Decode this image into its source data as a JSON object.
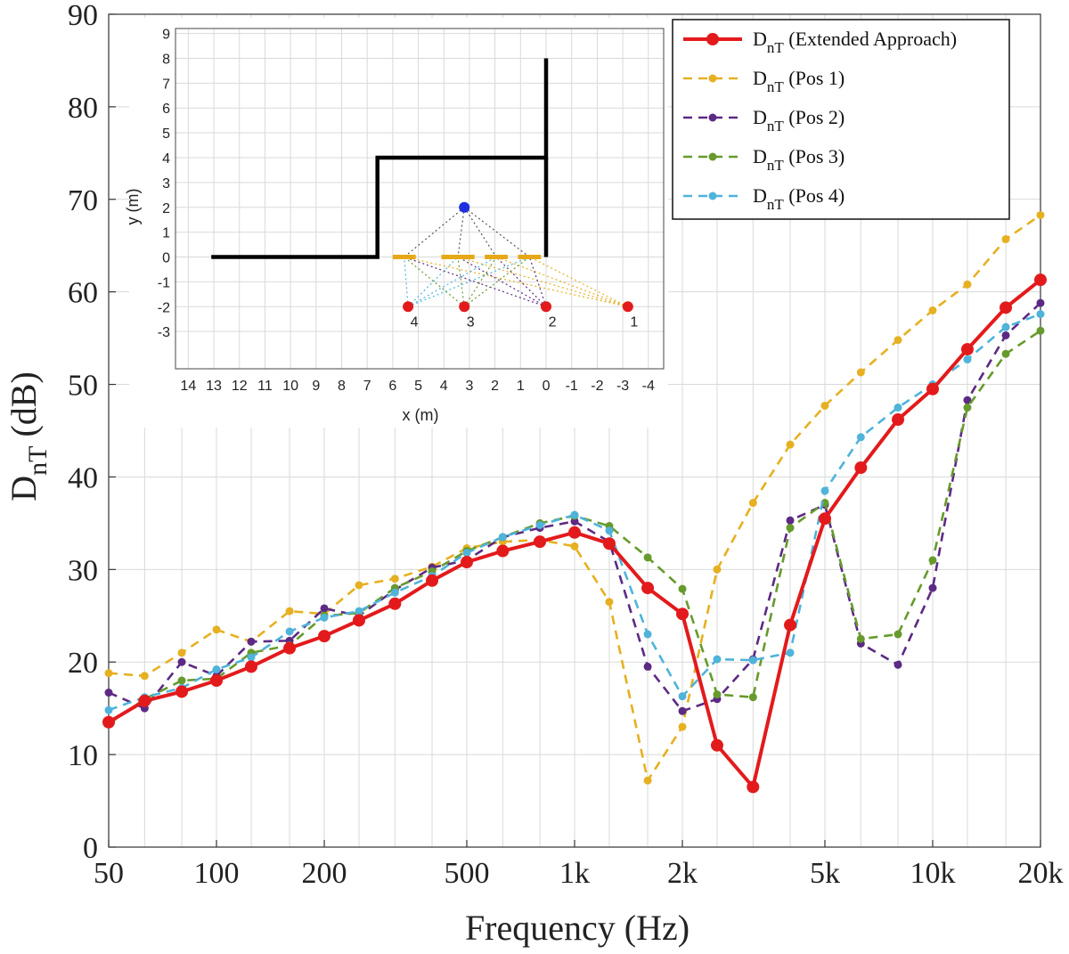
{
  "chart_data": {
    "type": "line",
    "xscale": "log",
    "x": [
      50,
      63,
      80,
      100,
      125,
      160,
      200,
      250,
      315,
      400,
      500,
      630,
      800,
      1000,
      1250,
      1600,
      2000,
      2500,
      3150,
      4000,
      5000,
      6300,
      8000,
      10000,
      12500,
      16000,
      20000
    ],
    "xticks": [
      {
        "value": 50,
        "label": "50"
      },
      {
        "value": 100,
        "label": "100"
      },
      {
        "value": 200,
        "label": "200"
      },
      {
        "value": 500,
        "label": "500"
      },
      {
        "value": 1000,
        "label": "1k"
      },
      {
        "value": 2000,
        "label": "2k"
      },
      {
        "value": 5000,
        "label": "5k"
      },
      {
        "value": 10000,
        "label": "10k"
      },
      {
        "value": 20000,
        "label": "20k"
      }
    ],
    "xlabel": "Frequency (Hz)",
    "ylabel": {
      "main": "D",
      "sub": "nT",
      "unit": " (dB)"
    },
    "xlim": [
      50,
      20000
    ],
    "ylim": [
      0,
      90
    ],
    "yticks": [
      0,
      10,
      20,
      30,
      40,
      50,
      60,
      70,
      80,
      90
    ],
    "grid": true,
    "legend_position": "top-right",
    "series": [
      {
        "name": "D",
        "sub": "nT",
        "suffix": " (Extended Approach)",
        "color": "#e31a1c",
        "style": "solid",
        "values": [
          13.5,
          15.8,
          16.8,
          18,
          19.5,
          21.5,
          22.8,
          24.5,
          26.3,
          28.8,
          30.8,
          32,
          33,
          34,
          32.8,
          28,
          25.2,
          11,
          6.5,
          24,
          35.5,
          41,
          46.2,
          49.5,
          53.8,
          58.3,
          61.3
        ]
      },
      {
        "name": "D",
        "sub": "nT",
        "suffix": " (Pos 1)",
        "color": "#e6b021",
        "style": "dashed",
        "values": [
          18.8,
          18.5,
          21,
          23.5,
          22.2,
          25.5,
          25.2,
          28.3,
          29,
          30.3,
          32.3,
          33,
          33.2,
          32.5,
          26.5,
          7.2,
          13,
          30,
          37.2,
          43.5,
          47.7,
          51.3,
          54.8,
          58,
          60.8,
          65.7,
          68.3
        ]
      },
      {
        "name": "D",
        "sub": "nT",
        "suffix": " (Pos 2)",
        "color": "#5c2a84",
        "style": "dashed",
        "values": [
          16.7,
          15,
          20,
          18.5,
          22.2,
          22.3,
          25.8,
          25,
          27.8,
          30.2,
          31,
          33.5,
          34.5,
          35.2,
          33,
          19.5,
          14.7,
          16,
          20.3,
          35.3,
          37,
          22,
          19.7,
          28,
          48.3,
          55.3,
          58.8
        ]
      },
      {
        "name": "D",
        "sub": "nT",
        "suffix": " (Pos 3)",
        "color": "#679a2c",
        "style": "dashed",
        "values": [
          13.3,
          16,
          18,
          18.2,
          21,
          21.8,
          25,
          25.3,
          28,
          29.8,
          32,
          33.5,
          35,
          35.8,
          34.7,
          31.3,
          27.9,
          16.5,
          16.2,
          34.5,
          37.2,
          22.5,
          23,
          31,
          47.5,
          53.3,
          55.8
        ]
      },
      {
        "name": "D",
        "sub": "nT",
        "suffix": " (Pos 4)",
        "color": "#4fb3da",
        "style": "dashed",
        "values": [
          14.8,
          16.2,
          17.2,
          19.2,
          20.5,
          23.3,
          24.8,
          25.5,
          27.5,
          29.3,
          31.8,
          33.5,
          34.8,
          35.9,
          34.2,
          23,
          16.3,
          20.3,
          20.2,
          21,
          38.5,
          44.3,
          47.5,
          50,
          52.7,
          56.2,
          57.6
        ]
      }
    ],
    "inset": {
      "xlabel": "x (m)",
      "ylabel": "y (m)",
      "xticks": [
        14,
        13,
        12,
        11,
        10,
        9,
        8,
        7,
        6,
        5,
        4,
        3,
        2,
        1,
        0,
        -1,
        -2,
        -3,
        -4
      ],
      "yticks": [
        -3,
        -2,
        -1,
        0,
        1,
        2,
        3,
        4,
        5,
        6,
        7,
        8,
        9
      ],
      "xlim": [
        14.5,
        -4.6
      ],
      "ylim": [
        -4.5,
        9.2
      ],
      "walls": [
        [
          [
            13.1,
            0
          ],
          [
            6.6,
            0
          ],
          [
            6.6,
            4
          ],
          [
            0,
            4
          ],
          [
            0,
            8
          ]
        ],
        [
          [
            0,
            0
          ],
          [
            0,
            4
          ]
        ]
      ],
      "facade_segments": [
        [
          6.0,
          5.1
        ],
        [
          4.1,
          2.8
        ],
        [
          2.4,
          1.5
        ],
        [
          1.1,
          0.2
        ]
      ],
      "source": {
        "x": 3.2,
        "y": 2.0
      },
      "receivers": [
        {
          "label": "1",
          "x": -3.2,
          "y": -2
        },
        {
          "label": "2",
          "x": 0,
          "y": -2
        },
        {
          "label": "3",
          "x": 3.2,
          "y": -2
        },
        {
          "label": "4",
          "x": 5.4,
          "y": -2
        }
      ],
      "path_colors": [
        "#e6b021",
        "#5c2a84",
        "#679a2c",
        "#4fb3da"
      ],
      "source_path_color": "#555555"
    }
  }
}
